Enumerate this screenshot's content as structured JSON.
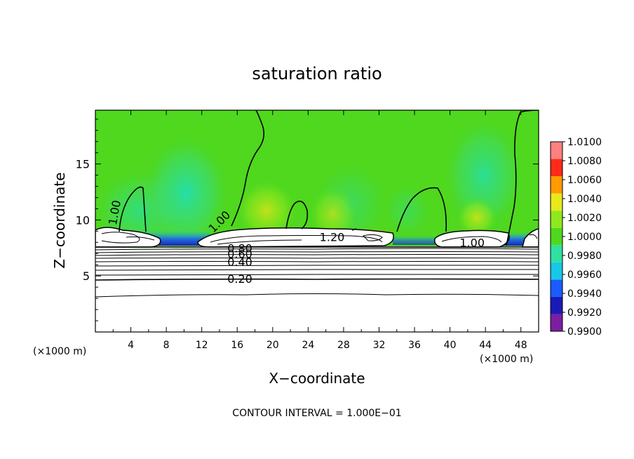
{
  "chart_data": {
    "type": "heatmap",
    "title": "saturation ratio",
    "xlabel": "X−coordinate",
    "ylabel": "Z−coordinate",
    "x_unit_left": "(×1000 m)",
    "x_unit_right": "(×1000 m)",
    "xlim": [
      0,
      50
    ],
    "ylim": [
      0,
      19.8
    ],
    "x_ticks": [
      4,
      8,
      12,
      16,
      20,
      24,
      28,
      32,
      36,
      40,
      44,
      48
    ],
    "y_ticks": [
      5,
      10,
      15
    ],
    "footer": "CONTOUR INTERVAL = 1.000E−01",
    "colorbar": {
      "ticks": [
        "1.0100",
        "1.0080",
        "1.0060",
        "1.0040",
        "1.0020",
        "1.0000",
        "0.9980",
        "0.9960",
        "0.9940",
        "0.9920",
        "0.9900"
      ],
      "colors": [
        "#7a1fa2",
        "#1a1ab8",
        "#1a5cff",
        "#16c8e6",
        "#2fe0a0",
        "#4fd81e",
        "#8ee81c",
        "#e8e81a",
        "#ff9a00",
        "#ff2a1a",
        "#ff8080"
      ]
    },
    "background_color": "#4fd81e",
    "contour_labels": [
      {
        "text": "1.00",
        "x": 2.6,
        "z": 10.6,
        "rot": -80
      },
      {
        "text": "1.00",
        "x": 14.3,
        "z": 9.6,
        "rot": -45
      },
      {
        "text": "1.20",
        "x": 26.7,
        "z": 8.1,
        "rot": 0
      },
      {
        "text": "1.00",
        "x": 42.5,
        "z": 7.6,
        "rot": 0
      },
      {
        "text": "0.80",
        "x": 16.3,
        "z": 7.1,
        "rot": 0
      },
      {
        "text": "0.60",
        "x": 16.3,
        "z": 6.6,
        "rot": 0
      },
      {
        "text": "0.40",
        "x": 16.3,
        "z": 5.9,
        "rot": 0
      },
      {
        "text": "0.20",
        "x": 16.3,
        "z": 4.4,
        "rot": 0
      }
    ]
  }
}
